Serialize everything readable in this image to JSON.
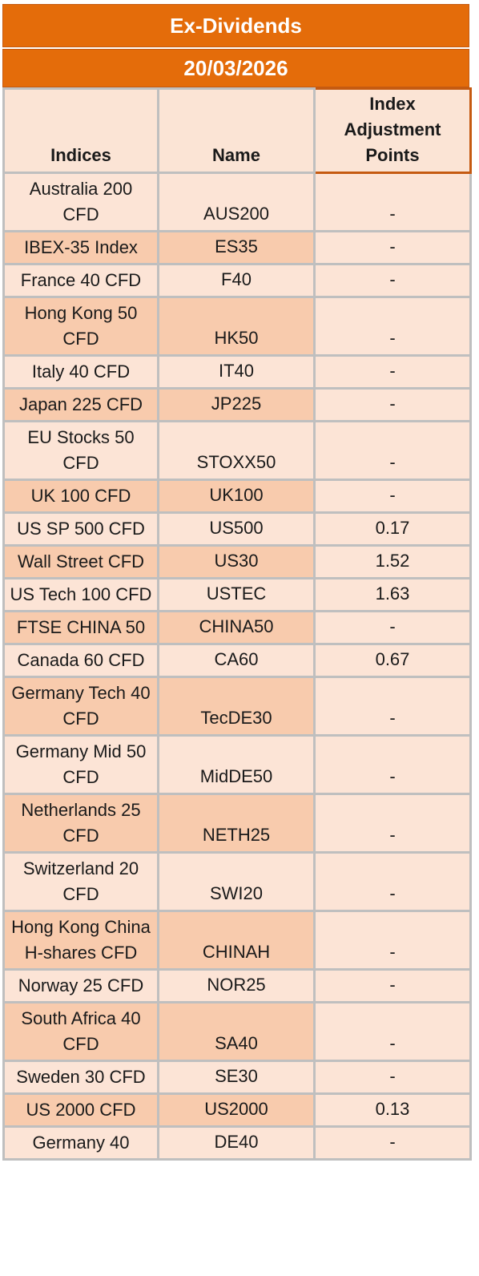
{
  "title": "Ex-Dividends",
  "date": "20/03/2026",
  "headers": {
    "indices": "Indices",
    "name": "Name",
    "adjustment_line1": "Index",
    "adjustment_line2": "Adjustment",
    "adjustment_line3": "Points"
  },
  "rows": [
    {
      "index": "Australia 200 CFD",
      "name": "AUS200",
      "adjustment": "-"
    },
    {
      "index": "IBEX-35 Index",
      "name": "ES35",
      "adjustment": "-"
    },
    {
      "index": "France 40 CFD",
      "name": "F40",
      "adjustment": "-"
    },
    {
      "index": "Hong Kong 50 CFD",
      "name": "HK50",
      "adjustment": "-"
    },
    {
      "index": "Italy 40 CFD",
      "name": "IT40",
      "adjustment": "-"
    },
    {
      "index": "Japan 225 CFD",
      "name": "JP225",
      "adjustment": "-"
    },
    {
      "index": "EU Stocks 50 CFD",
      "name": "STOXX50",
      "adjustment": "-"
    },
    {
      "index": "UK 100 CFD",
      "name": "UK100",
      "adjustment": "-"
    },
    {
      "index": "US SP 500 CFD",
      "name": "US500",
      "adjustment": "0.17"
    },
    {
      "index": "Wall Street CFD",
      "name": "US30",
      "adjustment": "1.52"
    },
    {
      "index": "US Tech 100 CFD",
      "name": "USTEC",
      "adjustment": "1.63"
    },
    {
      "index": "FTSE CHINA 50",
      "name": "CHINA50",
      "adjustment": "-"
    },
    {
      "index": "Canada 60 CFD",
      "name": "CA60",
      "adjustment": "0.67"
    },
    {
      "index": "Germany Tech 40 CFD",
      "name": "TecDE30",
      "adjustment": "-"
    },
    {
      "index": "Germany Mid 50 CFD",
      "name": "MidDE50",
      "adjustment": "-"
    },
    {
      "index": "Netherlands 25 CFD",
      "name": "NETH25",
      "adjustment": "-"
    },
    {
      "index": "Switzerland 20 CFD",
      "name": "SWI20",
      "adjustment": "-"
    },
    {
      "index": "Hong Kong China H-shares CFD",
      "name": "CHINAH",
      "adjustment": "-"
    },
    {
      "index": "Norway 25 CFD",
      "name": "NOR25",
      "adjustment": "-"
    },
    {
      "index": "South Africa 40 CFD",
      "name": "SA40",
      "adjustment": "-"
    },
    {
      "index": "Sweden 30 CFD",
      "name": "SE30",
      "adjustment": "-"
    },
    {
      "index": "US 2000 CFD",
      "name": "US2000",
      "adjustment": "0.13"
    },
    {
      "index": "Germany 40",
      "name": "DE40",
      "adjustment": "-"
    }
  ]
}
